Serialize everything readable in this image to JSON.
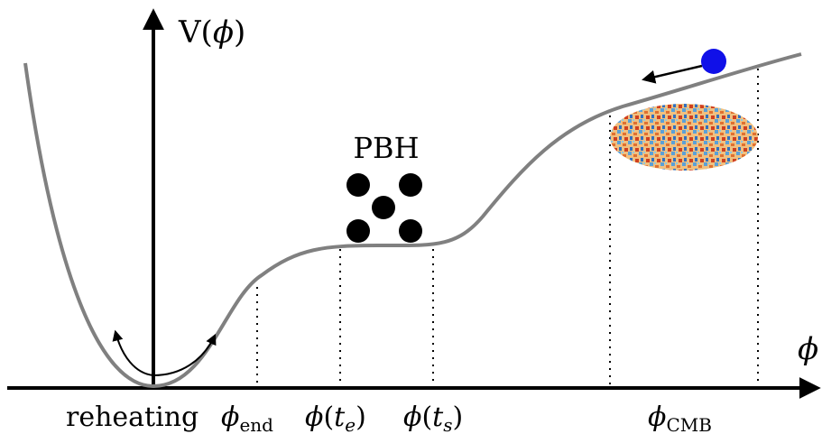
{
  "axes": {
    "y_label": {
      "main": "V(",
      "var": "ϕ",
      "tail": ")"
    },
    "x_label": "ϕ"
  },
  "pbh_label": "PBH",
  "x_labels": [
    {
      "main": "reheating"
    },
    {
      "var": "ϕ",
      "sub": "end"
    },
    {
      "var": "ϕ",
      "main": "(",
      "arg": "t",
      "sub": "e",
      "tail": ")"
    },
    {
      "var": "ϕ",
      "main": "(",
      "arg": "t",
      "sub": "s",
      "tail": ")"
    },
    {
      "var": "ϕ",
      "sub": "CMB"
    }
  ]
}
